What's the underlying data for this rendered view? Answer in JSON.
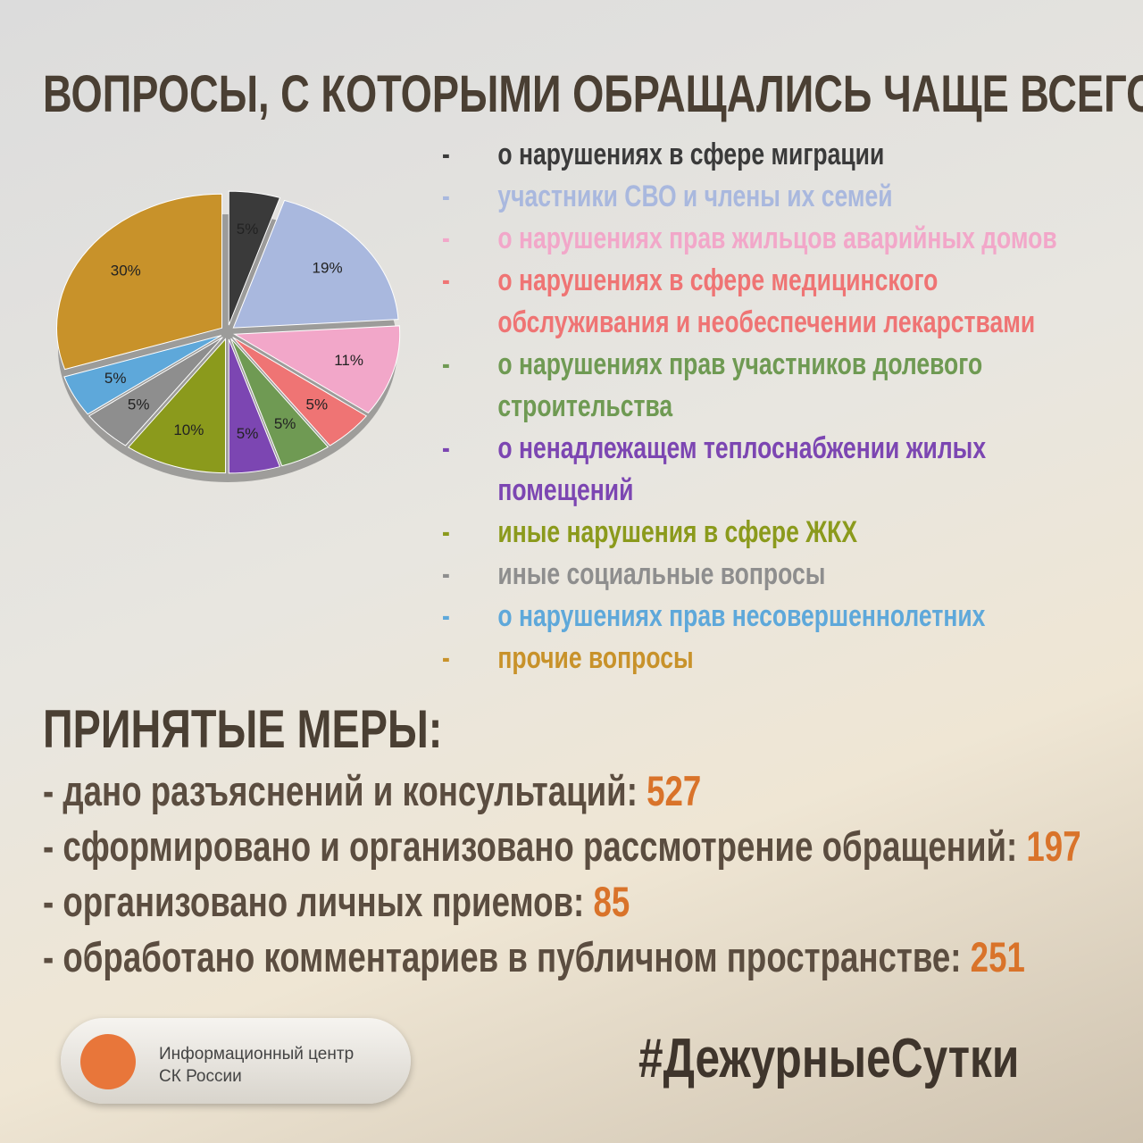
{
  "chart_data": {
    "type": "pie",
    "title": "ВОПРОСЫ, С КОТОРЫМИ ОБРАЩАЛИСЬ ЧАЩЕ ВСЕГО:",
    "categories": [
      "о нарушениях в сфере миграции",
      "участники СВО и члены их семей",
      "о нарушениях прав жильцов аварийных домов",
      "о нарушениях в сфере медицинского обслуживания и необеспечении лекарствами",
      "о нарушениях прав участников долевого строительства",
      "о ненадлежащем теплоснабжении жилых помещений",
      "иные нарушения в сфере ЖКХ",
      "иные социальные вопросы",
      "о нарушениях прав несовершеннолетних",
      "прочие вопросы"
    ],
    "values": [
      5,
      19,
      11,
      5,
      5,
      5,
      10,
      5,
      5,
      30
    ],
    "value_labels": [
      "5%",
      "19%",
      "11%",
      "5%",
      "5%",
      "5%",
      "10%",
      "5%",
      "5%",
      "30%"
    ],
    "colors": [
      "#3a3a3a",
      "#a9b8de",
      "#f2a7c9",
      "#ef7474",
      "#6f9a53",
      "#7c46b2",
      "#8b9a1c",
      "#8e8e8e",
      "#5ea8da",
      "#c8922a"
    ]
  },
  "measures": {
    "title": "ПРИНЯТЫЕ МЕРЫ:",
    "items": [
      {
        "text": "- дано разъяснений и консультаций:",
        "value": 527
      },
      {
        "text": "- сформировано и организовано рассмотрение обращений:",
        "value": 197
      },
      {
        "text": "- организовано личных приемов:",
        "value": 85
      },
      {
        "text": "- обработано комментариев в публичном пространстве:",
        "value": 251
      }
    ]
  },
  "footer": {
    "logo_line1": "Информационный центр",
    "logo_line2": "СК России",
    "hashtag": "#ДежурныеСутки"
  }
}
